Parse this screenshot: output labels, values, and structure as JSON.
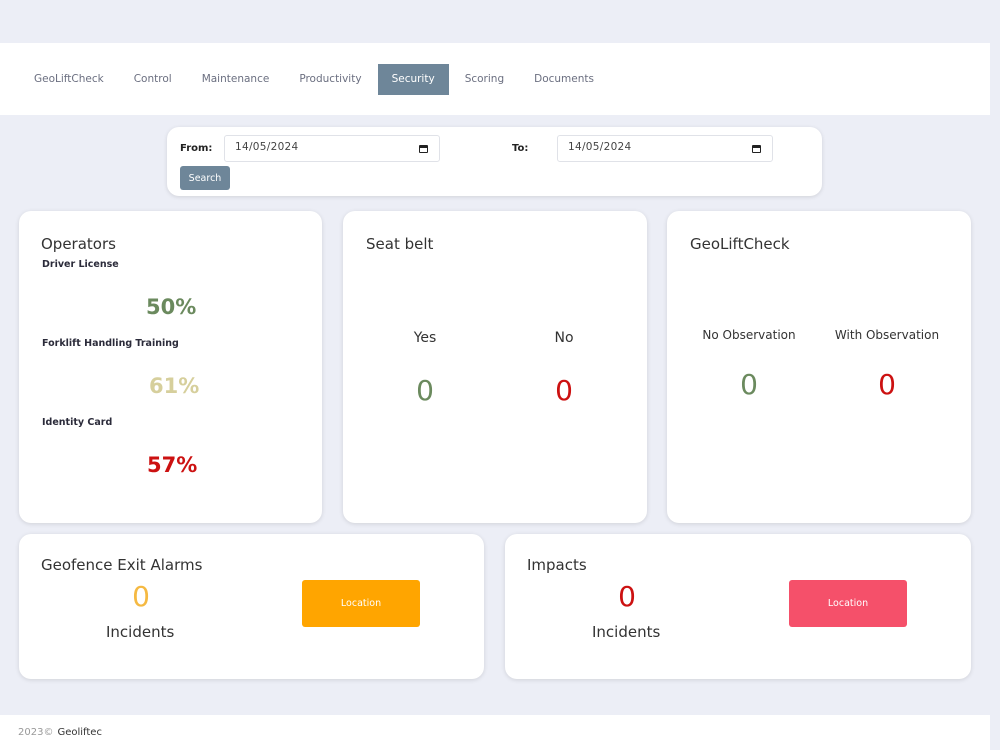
{
  "nav": {
    "tabs": [
      {
        "label": "GeoLiftCheck"
      },
      {
        "label": "Control"
      },
      {
        "label": "Maintenance"
      },
      {
        "label": "Productivity"
      },
      {
        "label": "Security",
        "active": true
      },
      {
        "label": "Scoring"
      },
      {
        "label": "Documents"
      }
    ]
  },
  "filter": {
    "from_label": "From:",
    "from_value": "14/05/2024",
    "to_label": "To:",
    "to_value": "14/05/2024",
    "search_label": "Search"
  },
  "operators": {
    "title": "Operators",
    "items": [
      {
        "label": "Driver License",
        "value": "50%",
        "color": "#6b8a5e"
      },
      {
        "label": "Forklift Handling Training",
        "value": "61%",
        "color": "#d6cf9c"
      },
      {
        "label": "Identity Card",
        "value": "57%",
        "color": "#cc1111"
      }
    ]
  },
  "seatbelt": {
    "title": "Seat belt",
    "yes_label": "Yes",
    "yes_value": "0",
    "no_label": "No",
    "no_value": "0"
  },
  "geolift": {
    "title": "GeoLiftCheck",
    "no_obs_label": "No Observation",
    "no_obs_value": "0",
    "with_obs_label": "With Observation",
    "with_obs_value": "0"
  },
  "geofence": {
    "title": "Geofence Exit Alarms",
    "value": "0",
    "incidents_label": "Incidents",
    "location_label": "Location"
  },
  "impacts": {
    "title": "Impacts",
    "value": "0",
    "incidents_label": "Incidents",
    "location_label": "Location"
  },
  "footer": {
    "year": "2023©",
    "brand": "Geoliftec"
  },
  "colors": {
    "green": "#6b8a5e",
    "red": "#cc1111",
    "orange": "#ffa500",
    "pink": "#f5506a",
    "accent": "#6e8699"
  }
}
